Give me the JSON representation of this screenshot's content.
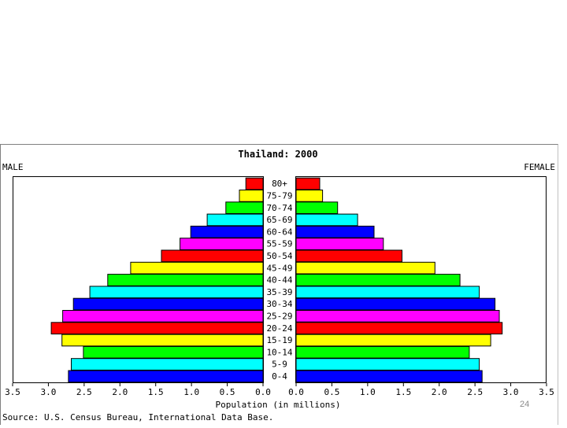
{
  "slide": {
    "number": "24"
  },
  "colors": {
    "palette": [
      "#0000ff",
      "#00ffff",
      "#00ff00",
      "#ffff00",
      "#ff0000",
      "#ff00ff"
    ]
  },
  "chart_data": {
    "type": "bar",
    "orientation": "horizontal-population-pyramid",
    "title": "Thailand: 2000",
    "left_label": "MALE",
    "right_label": "FEMALE",
    "xlabel": "Population (in millions)",
    "source": "Source: U.S. Census Bureau, International Data Base.",
    "xlim": [
      0,
      3.5
    ],
    "x_ticks": [
      "0.0",
      "0.5",
      "1.0",
      "1.5",
      "2.0",
      "2.5",
      "3.0",
      "3.5"
    ],
    "grid": false,
    "categories": [
      "0-4",
      "5-9",
      "10-14",
      "15-19",
      "20-24",
      "25-29",
      "30-34",
      "35-39",
      "40-44",
      "45-49",
      "50-54",
      "55-59",
      "60-64",
      "65-69",
      "70-74",
      "75-79",
      "80+"
    ],
    "series": [
      {
        "name": "MALE",
        "values": [
          2.72,
          2.68,
          2.51,
          2.81,
          2.96,
          2.8,
          2.65,
          2.42,
          2.17,
          1.85,
          1.42,
          1.16,
          1.01,
          0.78,
          0.52,
          0.33,
          0.24
        ]
      },
      {
        "name": "FEMALE",
        "values": [
          2.6,
          2.56,
          2.42,
          2.72,
          2.88,
          2.84,
          2.78,
          2.56,
          2.29,
          1.94,
          1.48,
          1.22,
          1.09,
          0.86,
          0.58,
          0.37,
          0.33
        ]
      }
    ],
    "bar_colors": [
      "#0000ff",
      "#00ffff",
      "#00ff00",
      "#ffff00",
      "#ff0000",
      "#ff00ff",
      "#0000ff",
      "#00ffff",
      "#00ff00",
      "#ffff00",
      "#ff0000",
      "#ff00ff",
      "#0000ff",
      "#00ffff",
      "#00ff00",
      "#ffff00",
      "#ff0000"
    ]
  }
}
